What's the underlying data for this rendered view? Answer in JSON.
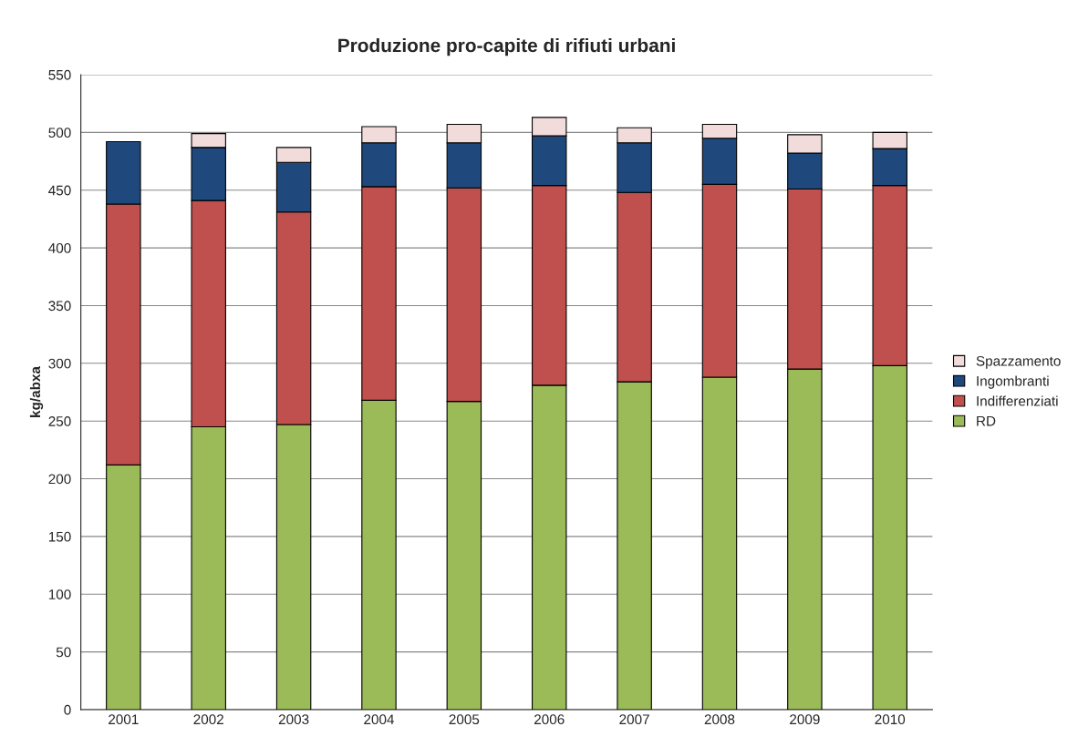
{
  "chart_data": {
    "type": "bar",
    "title": "Produzione pro-capite di rifiuti urbani",
    "ylabel": "kg/abxa",
    "stacked": true,
    "categories": [
      "2001",
      "2002",
      "2003",
      "2004",
      "2005",
      "2006",
      "2007",
      "2008",
      "2009",
      "2010"
    ],
    "series": [
      {
        "name": "RD",
        "color": "#9bbb59",
        "values": [
          212,
          245,
          247,
          268,
          267,
          281,
          284,
          288,
          295,
          298
        ]
      },
      {
        "name": "Indifferenziati",
        "color": "#c0504d",
        "values": [
          226,
          196,
          184,
          185,
          185,
          173,
          164,
          167,
          156,
          156
        ]
      },
      {
        "name": "Ingombranti",
        "color": "#1f497d",
        "values": [
          54,
          46,
          43,
          38,
          39,
          43,
          43,
          40,
          31,
          32
        ]
      },
      {
        "name": "Spazzamento",
        "color": "#f2dcdb",
        "values": [
          null,
          12,
          13,
          14,
          16,
          16,
          13,
          12,
          16,
          14
        ]
      }
    ],
    "ylim": [
      0,
      550
    ],
    "yticks": [
      0,
      50,
      100,
      150,
      200,
      250,
      300,
      350,
      400,
      450,
      500,
      550
    ],
    "grid": "y",
    "legend": "right"
  }
}
